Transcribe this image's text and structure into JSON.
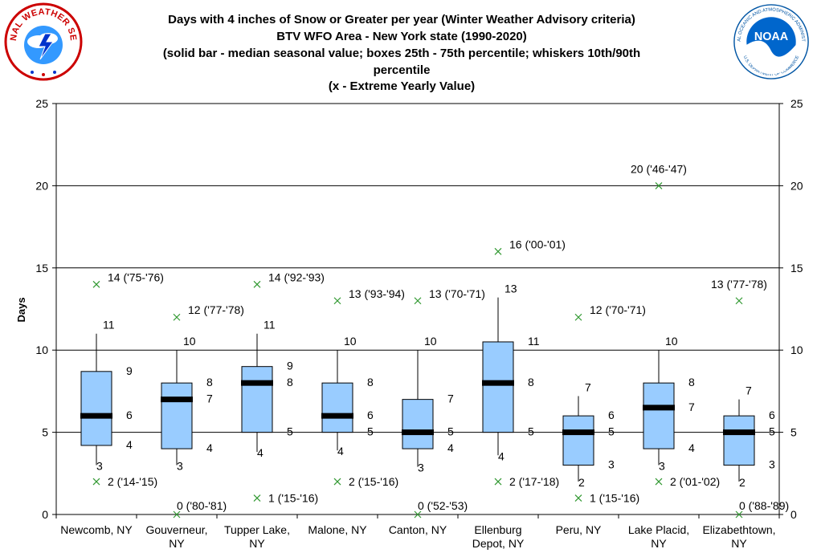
{
  "header": {
    "title_lines": [
      "Days with 4 inches of Snow or Greater per year (Winter Weather Advisory criteria)",
      "BTV WFO Area - New York state (1990-2020)",
      "(solid bar - median seasonal value; boxes 25th - 75th percentile; whiskers 10th/90th",
      "percentile",
      "(x - Extreme Yearly Value)"
    ]
  },
  "logos": {
    "nws_text": "NATIONAL WEATHER SERVICE",
    "noaa_ring_text": "NATIONAL OCEANIC AND ATMOSPHERIC ADMINISTRATION",
    "noaa_ring_bottom": "U.S. DEPARTMENT OF COMMERCE",
    "noaa_letters": "NOAA"
  },
  "colors": {
    "box_fill": "#99ccff",
    "marker": "#339933",
    "median": "#000000"
  },
  "chart_data": {
    "type": "box",
    "title": "Days with 4 inches of Snow or Greater per year (Winter Weather Advisory criteria)",
    "ylabel": "Days",
    "ylim": [
      0,
      25
    ],
    "yticks": [
      0,
      5,
      10,
      15,
      20,
      25
    ],
    "grid": true,
    "categories": [
      [
        "Newcomb, NY"
      ],
      [
        "Gouverneur,",
        "NY"
      ],
      [
        "Tupper Lake,",
        "NY"
      ],
      [
        "Malone, NY"
      ],
      [
        "Canton, NY"
      ],
      [
        "Ellenburg",
        "Depot, NY"
      ],
      [
        "Peru, NY"
      ],
      [
        "Lake Placid,",
        "NY"
      ],
      [
        "Elizabethtown,",
        "NY"
      ]
    ],
    "stats": [
      {
        "p10": 3,
        "p25": 4.2,
        "median": 6,
        "p75": 8.7,
        "p90": 11,
        "p10_label": "3",
        "p25_label": "4",
        "median_label": "6",
        "p75_label": "9",
        "p90_label": "11",
        "max": 14,
        "max_label": "14 ('75-'76)",
        "min": 2,
        "min_label": "2 ('14-'15)"
      },
      {
        "p10": 3,
        "p25": 4,
        "median": 7,
        "p75": 8,
        "p90": 10,
        "p10_label": "3",
        "p25_label": "4",
        "median_label": "7",
        "p75_label": "8",
        "p90_label": "10",
        "max": 12,
        "max_label": "12 ('77-'78)",
        "min": 0,
        "min_label": "0 ('80-'81)"
      },
      {
        "p10": 3.8,
        "p25": 5,
        "median": 8,
        "p75": 9,
        "p90": 11,
        "p10_label": "4",
        "p25_label": "5",
        "median_label": "8",
        "p75_label": "9",
        "p90_label": "11",
        "max": 14,
        "max_label": "14 ('92-'93)",
        "min": 1,
        "min_label": "1 ('15-'16)"
      },
      {
        "p10": 3.9,
        "p25": 5,
        "median": 6,
        "p75": 8,
        "p90": 10,
        "p10_label": "4",
        "p25_label": "5",
        "median_label": "6",
        "p75_label": "8",
        "p90_label": "10",
        "max": 13,
        "max_label": "13 ('93-'94)",
        "min": 2,
        "min_label": "2 ('15-'16)"
      },
      {
        "p10": 2.9,
        "p25": 4,
        "median": 5,
        "p75": 7,
        "p90": 10,
        "p10_label": "3",
        "p25_label": "4",
        "median_label": "5",
        "p75_label": "7",
        "p90_label": "10",
        "max": 13,
        "max_label": "13 ('70-'71)",
        "min": 0,
        "min_label": "0 ('52-'53)"
      },
      {
        "p10": 3.6,
        "p25": 5,
        "median": 8,
        "p75": 10.5,
        "p90": 13.2,
        "p10_label": "4",
        "p25_label": "5",
        "median_label": "8",
        "p75_label": "11",
        "p90_label": "13",
        "max": 16,
        "max_label": "16 ('00-'01)",
        "min": 2,
        "min_label": "2 ('17-'18)"
      },
      {
        "p10": 2,
        "p25": 3,
        "median": 5,
        "p75": 6,
        "p90": 7.2,
        "p10_label": "2",
        "p25_label": "3",
        "median_label": "5",
        "p75_label": "6",
        "p90_label": "7",
        "max": 12,
        "max_label": "12 ('70-'71)",
        "min": 1,
        "min_label": "1 ('15-'16)"
      },
      {
        "p10": 3,
        "p25": 4,
        "median": 6.5,
        "p75": 8,
        "p90": 10,
        "p10_label": "3",
        "p25_label": "4",
        "median_label": "7",
        "p75_label": "8",
        "p90_label": "10",
        "max": 20,
        "max_label": "20 ('46-'47)",
        "min": 2,
        "min_label": "2 ('01-'02)"
      },
      {
        "p10": 2,
        "p25": 3,
        "median": 5,
        "p75": 6,
        "p90": 7,
        "p10_label": "2",
        "p25_label": "3",
        "median_label": "5",
        "p75_label": "6",
        "p90_label": "7",
        "max": 13,
        "max_label": "13 ('77-'78)",
        "min": 0,
        "min_label": "0 ('88-'89)"
      }
    ]
  }
}
